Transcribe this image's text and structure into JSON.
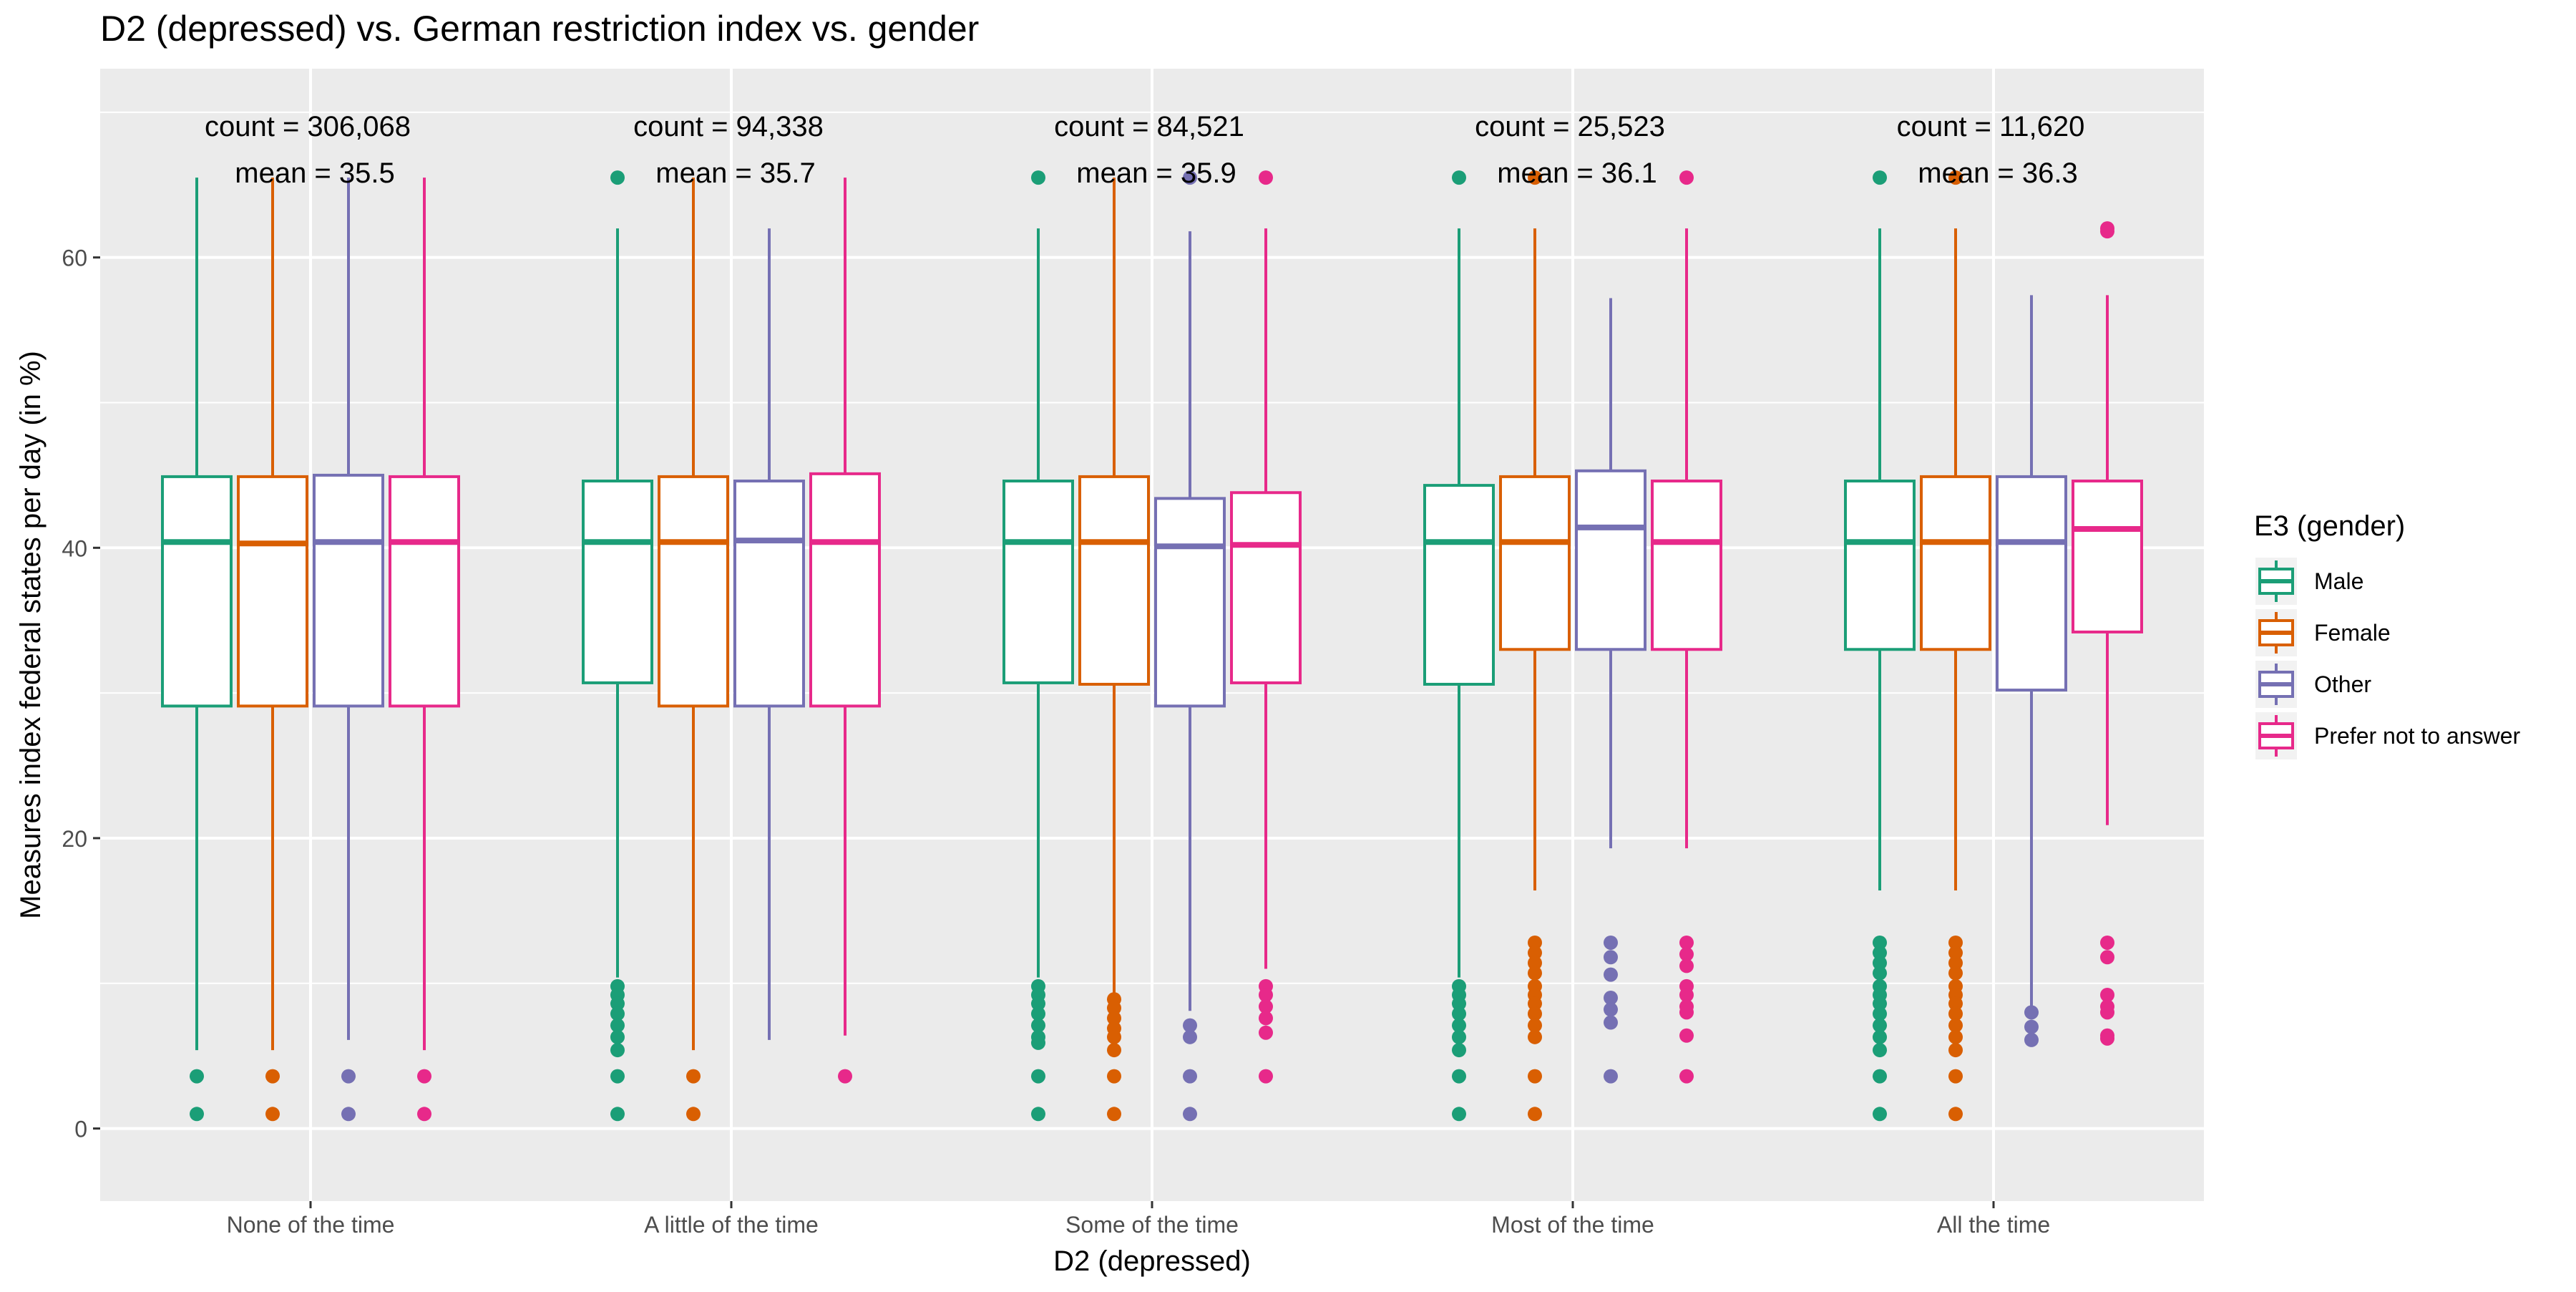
{
  "chart_data": {
    "type": "boxplot",
    "title": "D2 (depressed) vs. German restriction index vs. gender",
    "xlabel": "D2 (depressed)",
    "ylabel": "Measures index federal states per day (in %)",
    "ylim": [
      -5,
      73
    ],
    "yticks": [
      0,
      20,
      40,
      60
    ],
    "grid": true,
    "legend": {
      "title": "E3 (gender)",
      "position": "right"
    },
    "categories": [
      "None of the time",
      "A little of the time",
      "Some of the time",
      "Most of the time",
      "All the time"
    ],
    "annotations": [
      {
        "count": "count = 306,068",
        "mean": "mean = 35.5"
      },
      {
        "count": "count = 94,338",
        "mean": "mean = 35.7"
      },
      {
        "count": "count = 84,521",
        "mean": "mean = 35.9"
      },
      {
        "count": "count = 25,523",
        "mean": "mean = 36.1"
      },
      {
        "count": "count = 11,620",
        "mean": "mean = 36.3"
      }
    ],
    "series": [
      {
        "name": "Male",
        "color": "#1b9e77",
        "boxes": [
          {
            "low": 5.4,
            "q1": 29.1,
            "median": 40.4,
            "q3": 44.9,
            "high": 65.5,
            "outliers": [
              3.6,
              1.0
            ]
          },
          {
            "low": 10.4,
            "q1": 30.7,
            "median": 40.4,
            "q3": 44.6,
            "high": 62.0,
            "outliers": [
              65.5,
              9.8,
              9.2,
              8.6,
              7.9,
              7.1,
              6.3,
              5.4,
              3.6,
              1.0
            ]
          },
          {
            "low": 10.4,
            "q1": 30.7,
            "median": 40.4,
            "q3": 44.6,
            "high": 62.0,
            "outliers": [
              65.5,
              9.8,
              9.2,
              8.6,
              7.9,
              7.1,
              6.3,
              5.9,
              3.6,
              1.0
            ]
          },
          {
            "low": 10.4,
            "q1": 30.6,
            "median": 40.4,
            "q3": 44.3,
            "high": 62.0,
            "outliers": [
              65.5,
              9.8,
              9.2,
              8.6,
              7.9,
              7.1,
              6.3,
              5.4,
              3.6,
              1.0
            ]
          },
          {
            "low": 16.4,
            "q1": 33.0,
            "median": 40.4,
            "q3": 44.6,
            "high": 62.0,
            "outliers": [
              65.5,
              12.8,
              12.1,
              11.4,
              10.7,
              9.8,
              9.2,
              8.6,
              7.9,
              7.1,
              6.3,
              5.4,
              3.6,
              1.0
            ]
          }
        ]
      },
      {
        "name": "Female",
        "color": "#d95f02",
        "boxes": [
          {
            "low": 5.4,
            "q1": 29.1,
            "median": 40.3,
            "q3": 44.9,
            "high": 65.5,
            "outliers": [
              3.6,
              1.0
            ]
          },
          {
            "low": 5.4,
            "q1": 29.1,
            "median": 40.4,
            "q3": 44.9,
            "high": 65.5,
            "outliers": [
              3.6,
              1.0
            ]
          },
          {
            "low": 9.2,
            "q1": 30.6,
            "median": 40.4,
            "q3": 44.9,
            "high": 65.5,
            "outliers": [
              8.9,
              8.3,
              7.6,
              6.9,
              6.3,
              5.4,
              3.6,
              1.0
            ]
          },
          {
            "low": 16.4,
            "q1": 33.0,
            "median": 40.4,
            "q3": 44.9,
            "high": 62.0,
            "outliers": [
              65.5,
              12.8,
              12.1,
              11.4,
              10.7,
              9.8,
              9.2,
              8.6,
              7.9,
              7.1,
              6.3,
              3.6,
              1.0
            ]
          },
          {
            "low": 16.4,
            "q1": 33.0,
            "median": 40.4,
            "q3": 44.9,
            "high": 62.0,
            "outliers": [
              65.5,
              12.8,
              12.1,
              11.4,
              10.7,
              9.8,
              9.2,
              8.6,
              7.9,
              7.1,
              6.3,
              5.4,
              3.6,
              1.0
            ]
          }
        ]
      },
      {
        "name": "Other",
        "color": "#7570b3",
        "boxes": [
          {
            "low": 6.1,
            "q1": 29.1,
            "median": 40.4,
            "q3": 45.0,
            "high": 65.5,
            "outliers": [
              3.6,
              1.0
            ]
          },
          {
            "low": 6.1,
            "q1": 29.1,
            "median": 40.5,
            "q3": 44.6,
            "high": 62.0,
            "outliers": []
          },
          {
            "low": 8.1,
            "q1": 29.1,
            "median": 40.1,
            "q3": 43.4,
            "high": 61.8,
            "outliers": [
              65.5,
              7.1,
              6.3,
              3.6,
              1.0
            ]
          },
          {
            "low": 19.3,
            "q1": 33.0,
            "median": 41.4,
            "q3": 45.3,
            "high": 57.2,
            "outliers": [
              12.8,
              11.8,
              10.6,
              9.0,
              8.2,
              7.3,
              3.6
            ]
          },
          {
            "low": 8.3,
            "q1": 30.2,
            "median": 40.4,
            "q3": 44.9,
            "high": 57.4,
            "outliers": [
              8.0,
              7.0,
              6.1
            ]
          }
        ]
      },
      {
        "name": "Prefer not to answer",
        "color": "#e7298a",
        "boxes": [
          {
            "low": 5.4,
            "q1": 29.1,
            "median": 40.4,
            "q3": 44.9,
            "high": 65.5,
            "outliers": [
              3.6,
              1.0
            ]
          },
          {
            "low": 6.4,
            "q1": 29.1,
            "median": 40.4,
            "q3": 45.1,
            "high": 65.5,
            "outliers": [
              3.6
            ]
          },
          {
            "low": 11.0,
            "q1": 30.7,
            "median": 40.2,
            "q3": 43.8,
            "high": 62.0,
            "outliers": [
              65.5,
              9.8,
              9.2,
              8.4,
              7.6,
              6.6,
              3.6
            ]
          },
          {
            "low": 19.3,
            "q1": 33.0,
            "median": 40.4,
            "q3": 44.6,
            "high": 62.0,
            "outliers": [
              65.5,
              12.8,
              12.0,
              11.2,
              9.8,
              9.2,
              8.4,
              8.0,
              6.4,
              3.6
            ]
          },
          {
            "low": 20.9,
            "q1": 34.2,
            "median": 41.3,
            "q3": 44.6,
            "high": 57.4,
            "outliers": [
              62.0,
              61.8,
              12.8,
              11.8,
              9.2,
              8.4,
              8.0,
              6.4,
              6.2
            ]
          }
        ]
      }
    ]
  }
}
